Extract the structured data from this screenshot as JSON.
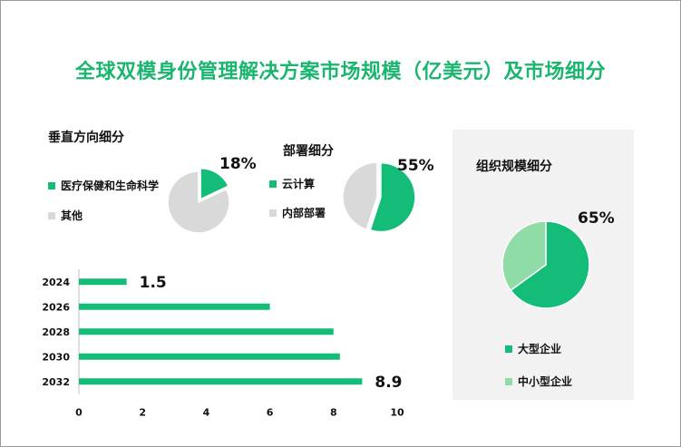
{
  "title": "全球双模身份管理解决方案市场规模（亿美元）及市场细分",
  "colors": {
    "primary_green": "#13bd77",
    "light_green": "#8fdca6",
    "gray": "#d9d9d9"
  },
  "chart_data": [
    {
      "type": "pie",
      "title": "垂直方向细分",
      "labels": [
        "医疗保健和生命科学",
        "其他"
      ],
      "values": [
        18,
        82
      ],
      "value_label": "18%"
    },
    {
      "type": "pie",
      "title": "部署细分",
      "labels": [
        "云计算",
        "内部部署"
      ],
      "values": [
        55,
        45
      ],
      "value_label": "55%"
    },
    {
      "type": "pie",
      "title": "组织规模细分",
      "labels": [
        "大型企业",
        "中小型企业"
      ],
      "values": [
        65,
        35
      ],
      "value_label": "65%"
    },
    {
      "type": "bar",
      "orientation": "horizontal",
      "categories": [
        "2024",
        "2026",
        "2028",
        "2030",
        "2032"
      ],
      "values": [
        1.5,
        6.0,
        8.0,
        8.2,
        8.9
      ],
      "data_labels": [
        "1.5",
        "",
        "",
        "",
        "8.9"
      ],
      "xlim": [
        0,
        10
      ],
      "xticks": [
        "0",
        "2",
        "4",
        "6",
        "8",
        "10"
      ]
    }
  ]
}
